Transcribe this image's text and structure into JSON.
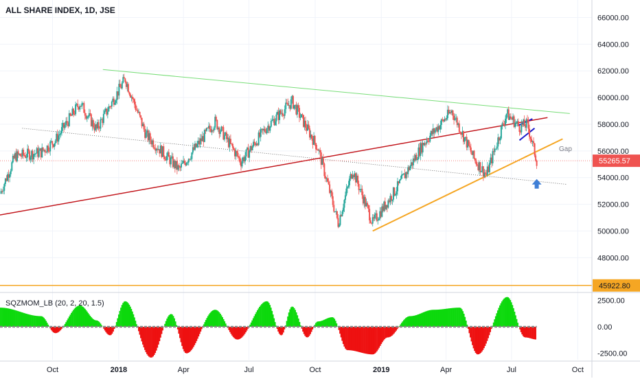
{
  "chart": {
    "title": "ALL SHARE INDEX, 1D, JSE",
    "indicator_title": "SQZMOM_LB (20, 2, 20, 1.5)",
    "gap_label": "Gap",
    "last_price_label": "55265.57",
    "support_label": "45922.80",
    "colors": {
      "up": "#26a69a",
      "down": "#ef5350",
      "channel_top": "#77dd77",
      "red_line": "#c2171d",
      "orange_line": "#f5a623",
      "flag": "#1a1acc",
      "arrow": "#3f7fd6",
      "mom_up": "#0dd90d",
      "mom_down": "#ee1111",
      "last_tag": "#ef5350",
      "support_tag": "#f5a623"
    }
  },
  "chart_data": [
    {
      "type": "candlestick",
      "x_ticks": [
        "Oct",
        "2018",
        "Apr",
        "Jul",
        "Oct",
        "2019",
        "Apr",
        "Jul",
        "Oct"
      ],
      "y_ticks": [
        "66000.00",
        "64000.00",
        "62000.00",
        "60000.00",
        "58000.00",
        "56000.00",
        "54000.00",
        "52000.00",
        "50000.00",
        "48000.00"
      ],
      "ylim": [
        45500,
        67000
      ],
      "last_price": 55265.57,
      "horizontal_line": 45922.8,
      "approx_path": [
        {
          "x": "2017-07-20",
          "close": 52800
        },
        {
          "x": "2017-08-10",
          "close": 55600
        },
        {
          "x": "2017-09-15",
          "close": 55900
        },
        {
          "x": "2017-10-05",
          "close": 56800
        },
        {
          "x": "2017-11-08",
          "close": 59600
        },
        {
          "x": "2017-12-01",
          "close": 57600
        },
        {
          "x": "2018-01-10",
          "close": 61400
        },
        {
          "x": "2018-02-08",
          "close": 57200
        },
        {
          "x": "2018-03-26",
          "close": 54600
        },
        {
          "x": "2018-05-15",
          "close": 58200
        },
        {
          "x": "2018-06-20",
          "close": 55200
        },
        {
          "x": "2018-07-26",
          "close": 57800
        },
        {
          "x": "2018-08-30",
          "close": 59700
        },
        {
          "x": "2018-10-05",
          "close": 56200
        },
        {
          "x": "2018-11-02",
          "close": 50600
        },
        {
          "x": "2018-11-22",
          "close": 54600
        },
        {
          "x": "2018-12-20",
          "close": 50600
        },
        {
          "x": "2019-01-25",
          "close": 53400
        },
        {
          "x": "2019-03-01",
          "close": 56600
        },
        {
          "x": "2019-04-09",
          "close": 59000
        },
        {
          "x": "2019-05-10",
          "close": 55400
        },
        {
          "x": "2019-05-27",
          "close": 54200
        },
        {
          "x": "2019-06-24",
          "close": 58800
        },
        {
          "x": "2019-07-12",
          "close": 57800
        },
        {
          "x": "2019-07-23",
          "close": 58000
        },
        {
          "x": "2019-08-05",
          "close": 55265.57
        }
      ]
    },
    {
      "type": "bar",
      "title": "SQZMOM_LB (20, 2, 20, 1.5)",
      "y_ticks": [
        "2500.00",
        "0.00",
        "-2500.00"
      ],
      "ylim": [
        -3100,
        3100
      ],
      "approx_values": [
        {
          "x": "2017-07-20",
          "value": 1800
        },
        {
          "x": "2017-09-15",
          "value": 1000
        },
        {
          "x": "2017-10-05",
          "value": -600
        },
        {
          "x": "2017-11-08",
          "value": 2000
        },
        {
          "x": "2017-12-01",
          "value": 600
        },
        {
          "x": "2017-12-20",
          "value": -800
        },
        {
          "x": "2018-01-10",
          "value": 2400
        },
        {
          "x": "2018-02-15",
          "value": -2900
        },
        {
          "x": "2018-03-15",
          "value": 1200
        },
        {
          "x": "2018-04-05",
          "value": -2500
        },
        {
          "x": "2018-05-15",
          "value": 1600
        },
        {
          "x": "2018-06-15",
          "value": -1200
        },
        {
          "x": "2018-07-26",
          "value": 2400
        },
        {
          "x": "2018-08-15",
          "value": -800
        },
        {
          "x": "2018-08-30",
          "value": 1900
        },
        {
          "x": "2018-09-20",
          "value": -1000
        },
        {
          "x": "2018-10-05",
          "value": 500
        },
        {
          "x": "2018-10-25",
          "value": 900
        },
        {
          "x": "2018-11-15",
          "value": -2200
        },
        {
          "x": "2018-12-20",
          "value": -2600
        },
        {
          "x": "2019-01-10",
          "value": -1000
        },
        {
          "x": "2019-02-10",
          "value": 1000
        },
        {
          "x": "2019-03-15",
          "value": 1600
        },
        {
          "x": "2019-04-20",
          "value": 1800
        },
        {
          "x": "2019-05-15",
          "value": -2600
        },
        {
          "x": "2019-06-25",
          "value": 2800
        },
        {
          "x": "2019-07-20",
          "value": -1000
        },
        {
          "x": "2019-08-05",
          "value": -1200
        }
      ]
    }
  ]
}
